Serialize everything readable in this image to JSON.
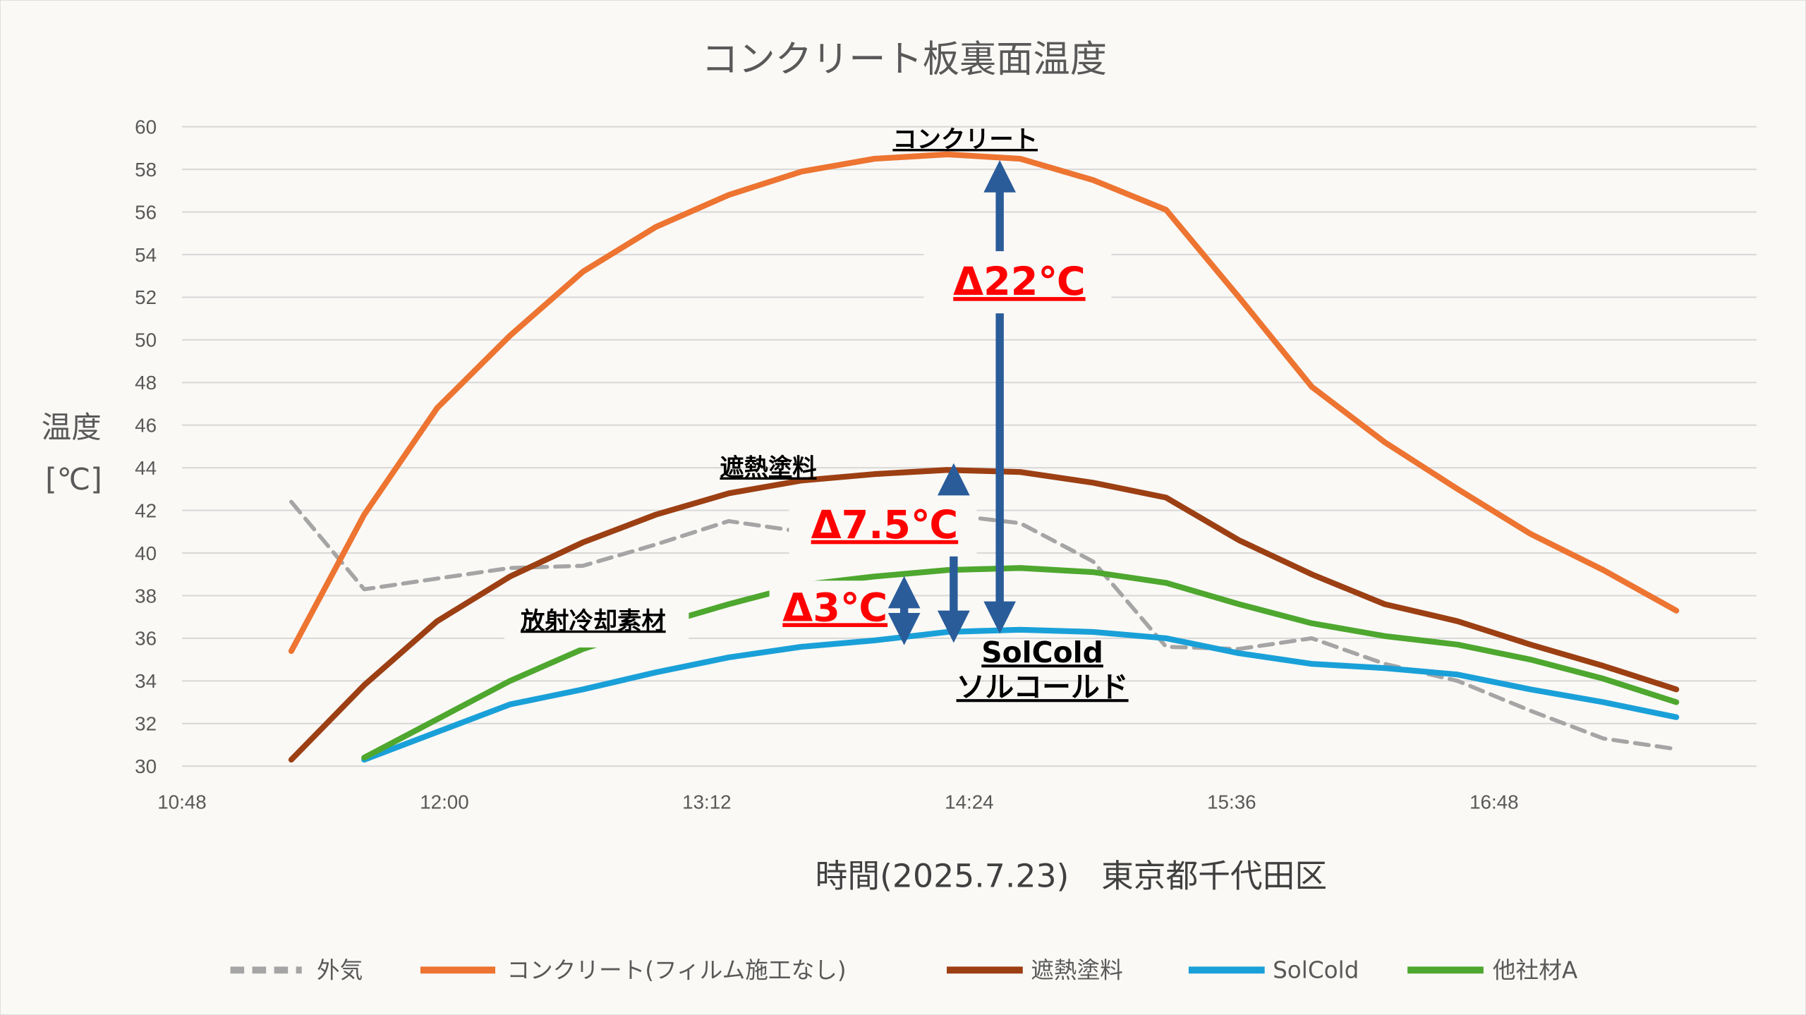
{
  "chart_data": {
    "type": "line",
    "title": "コンクリート板裏面温度",
    "xlabel": "時間(2025.7.23)　東京都千代田区",
    "ylabel": [
      "温度",
      "[℃]"
    ],
    "ylim": [
      30,
      60
    ],
    "xlim": [
      "10:48",
      "18:00"
    ],
    "grid": true,
    "legend_position": "bottom",
    "y_ticks": [
      "30",
      "32",
      "34",
      "36",
      "38",
      "40",
      "42",
      "44",
      "46",
      "48",
      "50",
      "52",
      "54",
      "56",
      "58",
      "60"
    ],
    "x_ticks": [
      "10:48",
      "12:00",
      "13:12",
      "14:24",
      "15:36",
      "16:48"
    ],
    "x": [
      "11:18",
      "11:38",
      "11:58",
      "12:18",
      "12:38",
      "12:58",
      "13:18",
      "13:38",
      "13:58",
      "14:18",
      "14:38",
      "14:58",
      "15:18",
      "15:38",
      "15:58",
      "16:18",
      "16:38",
      "16:58",
      "17:18",
      "17:38"
    ],
    "series": [
      {
        "name": "外気",
        "color": "#a5a5a5",
        "dashed": true,
        "values": [
          42.4,
          38.3,
          38.8,
          39.3,
          39.4,
          40.4,
          41.5,
          41.0,
          42.2,
          41.8,
          41.4,
          39.6,
          35.6,
          35.5,
          36.0,
          34.8,
          34.0,
          32.6,
          31.3,
          30.8
        ]
      },
      {
        "name": "コンクリート(フィルム施工なし)",
        "color": "#ed7431",
        "dashed": false,
        "values": [
          35.4,
          41.8,
          46.8,
          50.2,
          53.2,
          55.3,
          56.8,
          57.9,
          58.5,
          58.7,
          58.5,
          57.5,
          56.1,
          52.0,
          47.8,
          45.2,
          43.0,
          40.9,
          39.2,
          37.3
        ]
      },
      {
        "name": "遮熱塗料",
        "color": "#9c3f13",
        "dashed": false,
        "values": [
          30.3,
          33.8,
          36.8,
          38.9,
          40.5,
          41.8,
          42.8,
          43.4,
          43.7,
          43.9,
          43.8,
          43.3,
          42.6,
          40.6,
          39.0,
          37.6,
          36.8,
          35.7,
          34.7,
          33.6
        ]
      },
      {
        "name": "SolCold",
        "color": "#1aa0d8",
        "dashed": false,
        "values": [
          null,
          30.3,
          31.6,
          32.9,
          33.6,
          34.4,
          35.1,
          35.6,
          35.9,
          36.3,
          36.4,
          36.3,
          36.0,
          35.3,
          34.8,
          34.6,
          34.3,
          33.6,
          33.0,
          32.3
        ]
      },
      {
        "name": "他社材A",
        "color": "#4ea72e",
        "dashed": false,
        "values": [
          null,
          30.4,
          32.2,
          34.0,
          35.5,
          36.6,
          37.6,
          38.5,
          38.9,
          39.2,
          39.3,
          39.1,
          38.6,
          37.6,
          36.7,
          36.1,
          35.7,
          35.0,
          34.1,
          33.0
        ]
      }
    ],
    "annotations": {
      "concrete_label": "コンクリート",
      "paint_label": "遮熱塗料",
      "radiative_label": "放射冷却素材",
      "solcold_label": "SolCold",
      "solcold_kana": "ソルコールド",
      "delta_concrete": "Δ22℃",
      "delta_paint": "Δ7.5℃",
      "delta_radiative": "Δ3℃",
      "arrow_color": "#2b5c9a",
      "delta_color": "#ff0000"
    }
  }
}
